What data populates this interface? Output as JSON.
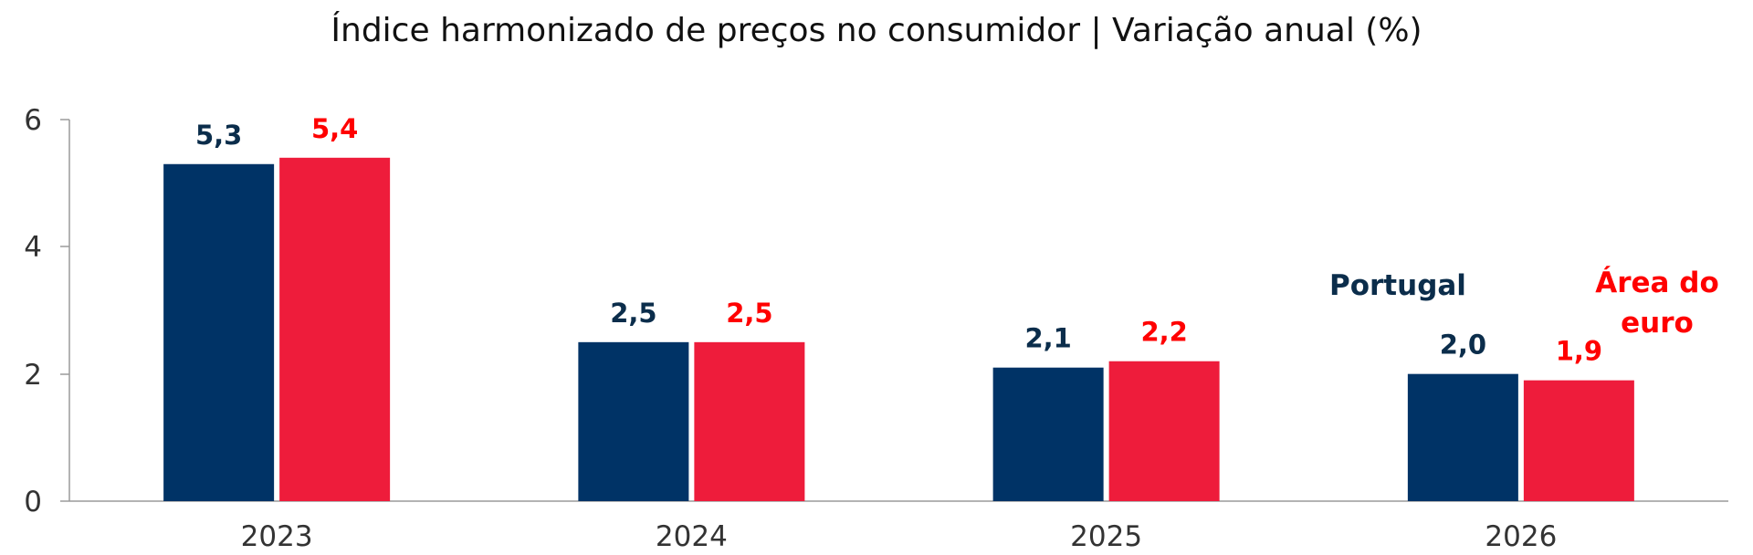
{
  "chart_data": {
    "type": "bar",
    "title": "Índice harmonizado de preços no consumidor | Variação anual (%)",
    "categories": [
      "2023",
      "2024",
      "2025",
      "2026"
    ],
    "series": [
      {
        "name": "Portugal",
        "values": [
          5.3,
          2.5,
          2.1,
          2.0
        ],
        "labels": [
          "5,3",
          "2,5",
          "2,1",
          "2,0"
        ],
        "color": "#003366",
        "label_color": "#0b2d4b"
      },
      {
        "name": "Área do euro",
        "values": [
          5.4,
          2.5,
          2.2,
          1.9
        ],
        "labels": [
          "5,4",
          "2,5",
          "2,2",
          "1,9"
        ],
        "color": "#ee1c3b",
        "label_color": "#ff0000"
      }
    ],
    "legend": {
      "portugal": "Portugal",
      "euro_line1": "Área do",
      "euro_line2": "euro"
    },
    "yticks": [
      "0",
      "2",
      "4",
      "6"
    ],
    "ylim": [
      0,
      6
    ],
    "xlabel": "",
    "ylabel": ""
  }
}
